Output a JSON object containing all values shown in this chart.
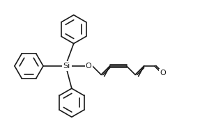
{
  "background": "#ffffff",
  "line_color": "#1a1a1a",
  "line_width": 1.2,
  "font_size": 7.5,
  "fig_width": 3.2,
  "fig_height": 1.87,
  "dpi": 100,
  "xlim": [
    0,
    10.5
  ],
  "ylim": [
    1.5,
    8.0
  ]
}
